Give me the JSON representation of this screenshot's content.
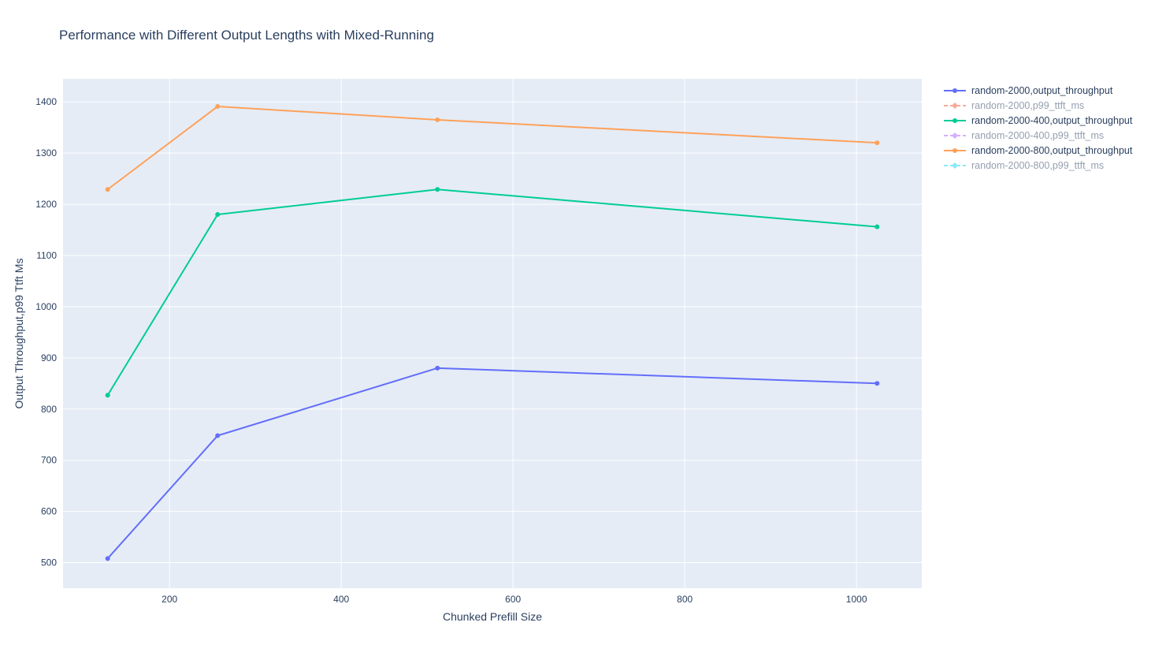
{
  "chart_data": {
    "type": "line",
    "title": "Performance with Different Output Lengths with Mixed-Running",
    "xlabel": "Chunked Prefill Size",
    "ylabel": "Output Throughput,p99 Ttft Ms",
    "xlim": [
      76,
      1076
    ],
    "ylim": [
      450,
      1445
    ],
    "x_ticks": [
      200,
      400,
      600,
      800,
      1000
    ],
    "y_ticks": [
      500,
      600,
      700,
      800,
      900,
      1000,
      1100,
      1200,
      1300,
      1400
    ],
    "grid": true,
    "plot_background": "#e5ecf6",
    "legend_position": "right",
    "series": [
      {
        "name": "random-2000,output_throughput",
        "color": "#636efa",
        "dash": "solid",
        "marker": "circle",
        "visible": true,
        "x": [
          128,
          256,
          512,
          1024
        ],
        "y": [
          508,
          748,
          880,
          850
        ]
      },
      {
        "name": "random-2000,p99_ttft_ms",
        "color": "#ef553b",
        "dash": "dash",
        "marker": "diamond",
        "visible": false,
        "x": [],
        "y": []
      },
      {
        "name": "random-2000-400,output_throughput",
        "color": "#00cc96",
        "dash": "solid",
        "marker": "circle",
        "visible": true,
        "x": [
          128,
          256,
          512,
          1024
        ],
        "y": [
          827,
          1180,
          1229,
          1156
        ]
      },
      {
        "name": "random-2000-400,p99_ttft_ms",
        "color": "#ab63fa",
        "dash": "dash",
        "marker": "diamond",
        "visible": false,
        "x": [],
        "y": []
      },
      {
        "name": "random-2000-800,output_throughput",
        "color": "#ffa15a",
        "dash": "solid",
        "marker": "circle",
        "visible": true,
        "x": [
          128,
          256,
          512,
          1024
        ],
        "y": [
          1229,
          1391,
          1365,
          1320
        ]
      },
      {
        "name": "random-2000-800,p99_ttft_ms",
        "color": "#19d3f3",
        "dash": "dash",
        "marker": "diamond",
        "visible": false,
        "x": [],
        "y": []
      }
    ]
  }
}
